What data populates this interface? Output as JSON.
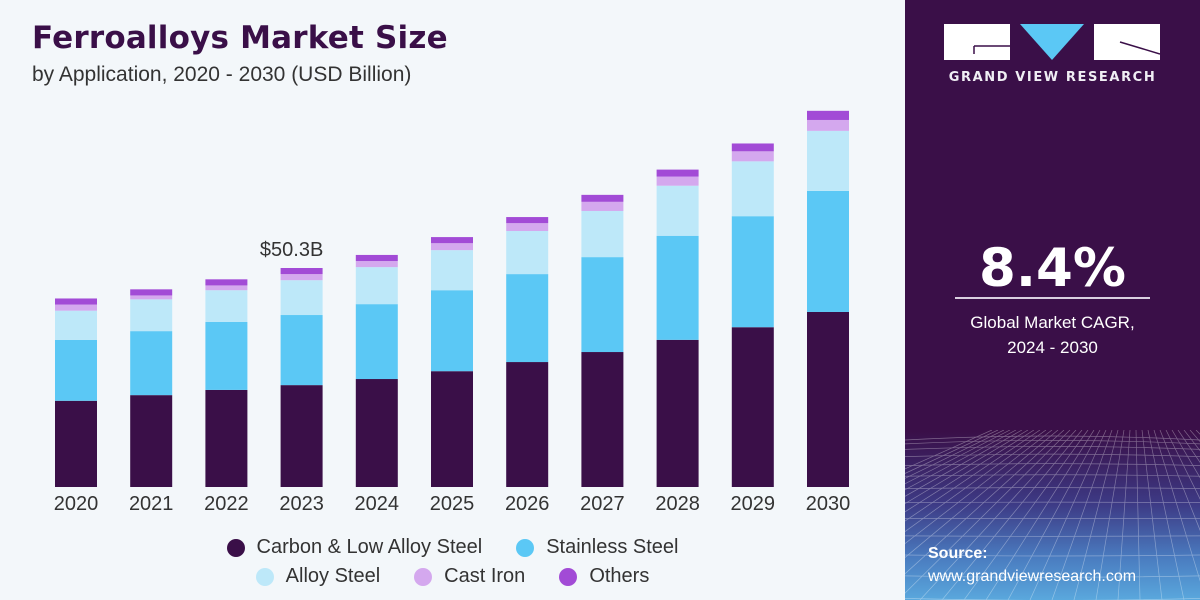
{
  "header": {
    "title": "Ferroalloys Market Size",
    "subtitle": "by Application, 2020 - 2030 (USD Billion)"
  },
  "sidebar": {
    "logo_text": "GRAND VIEW RESEARCH",
    "cagr_value": "8.4%",
    "cagr_label_line1": "Global Market CAGR,",
    "cagr_label_line2": "2024 - 2030",
    "source_label": "Source:",
    "source_url": "www.grandviewresearch.com",
    "colors": {
      "background": "#3a0f48",
      "logo_accent": "#5bc8f5"
    }
  },
  "chart_data": {
    "type": "bar",
    "stacked": true,
    "title": "Ferroalloys Market Size",
    "subtitle": "by Application, 2020 - 2030 (USD Billion)",
    "xlabel": "",
    "ylabel": "",
    "grid": false,
    "y_axis_visible": false,
    "ylim": [
      0,
      90
    ],
    "categories": [
      "2020",
      "2021",
      "2022",
      "2023",
      "2024",
      "2025",
      "2026",
      "2027",
      "2028",
      "2029",
      "2030"
    ],
    "series": [
      {
        "name": "Carbon & Low Alloy Steel",
        "color": "#3a0f48",
        "values": [
          19.8,
          21.1,
          22.3,
          23.4,
          24.8,
          26.6,
          28.7,
          31.0,
          33.8,
          36.7,
          40.2
        ]
      },
      {
        "name": "Stainless Steel",
        "color": "#5bc8f5",
        "values": [
          14.0,
          14.7,
          15.6,
          16.1,
          17.2,
          18.6,
          20.2,
          21.8,
          23.9,
          25.5,
          27.8
        ]
      },
      {
        "name": "Alloy Steel",
        "color": "#bde8f9",
        "values": [
          6.7,
          7.3,
          7.3,
          8.0,
          8.5,
          9.2,
          9.9,
          10.6,
          11.5,
          12.6,
          13.8
        ]
      },
      {
        "name": "Cast Iron",
        "color": "#d4a8ee",
        "values": [
          1.4,
          0.9,
          1.1,
          1.4,
          1.4,
          1.6,
          1.8,
          2.1,
          2.1,
          2.3,
          2.5
        ]
      },
      {
        "name": "Others",
        "color": "#a24bd6",
        "values": [
          1.4,
          1.4,
          1.4,
          1.4,
          1.4,
          1.4,
          1.4,
          1.6,
          1.6,
          1.8,
          2.1
        ]
      }
    ],
    "totals_approx": [
      43.3,
      45.4,
      47.7,
      50.3,
      53.3,
      57.4,
      62.0,
      67.1,
      72.9,
      78.9,
      86.4
    ],
    "annotations": [
      {
        "category": "2023",
        "text": "$50.3B"
      }
    ],
    "legend": {
      "position": "bottom",
      "rows": [
        [
          "Carbon & Low Alloy Steel",
          "Stainless Steel"
        ],
        [
          "Alloy Steel",
          "Cast Iron",
          "Others"
        ]
      ]
    }
  }
}
